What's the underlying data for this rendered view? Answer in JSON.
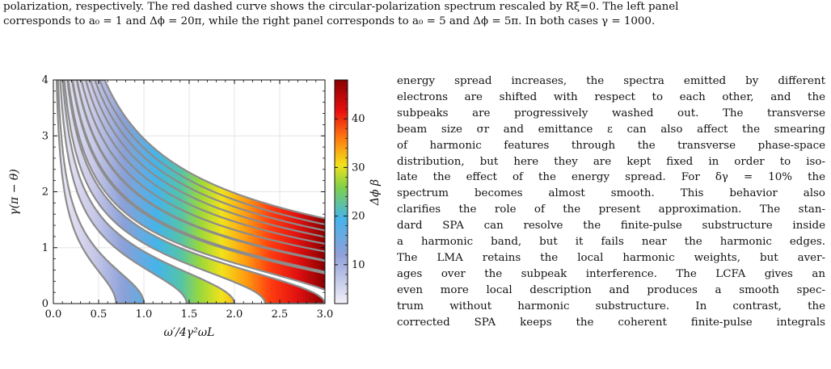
{
  "caption": {
    "line1": "polarization, respectively. The red dashed curve shows the circular-polarization spectrum rescaled by Rξ=0. The left panel",
    "line2": "corresponds to a₀ = 1 and Δϕ = 20π, while the right panel corresponds to a₀ = 5 and Δϕ = 5π. In both cases γ = 1000."
  },
  "body_text": [
    "energy spread increases, the spectra emitted by different",
    "electrons are shifted with respect to each other, and the",
    "subpeaks are progressively washed out. The transverse",
    "beam size σr and emittance ε can also affect the smearing",
    "of harmonic features through the transverse phase-space",
    "distribution, but here they are kept fixed in order to iso-",
    "late the effect of the energy spread. For δγ = 10% the",
    "spectrum becomes almost smooth. This behavior also",
    "clarifies the role of the present approximation. The stan-",
    "dard SPA can resolve the finite-pulse substructure inside",
    "a harmonic band, but it fails near the harmonic edges.",
    "The LMA retains the local harmonic weights, but aver-",
    "ages over the subpeak interference. The LCFA gives an",
    "even more local description and produces a smooth spec-",
    "trum without harmonic substructure. In contrast, the",
    "corrected SPA keeps the coherent finite-pulse integrals"
  ],
  "chart_data": {
    "type": "heatmap",
    "xlabel": "ω′/4γ²ωL",
    "ylabel": "γ(π − θ)",
    "colorbar_label": "Δϕ β",
    "xlim": [
      0,
      3
    ],
    "ylim": [
      0,
      4
    ],
    "x_ticks": [
      "0.0",
      "0.5",
      "1.0",
      "1.5",
      "2.0",
      "2.5",
      "3.0"
    ],
    "y_ticks": [
      "0",
      "1",
      "2",
      "3",
      "4"
    ],
    "colorbar_ticks": [
      "10",
      "20",
      "30",
      "40"
    ],
    "colorbar_range": [
      2,
      48
    ],
    "grid": true,
    "bands": [
      {
        "n": 1,
        "center": 1.0,
        "half_width": 0.14
      },
      {
        "n": 2,
        "center": 2.0,
        "half_width": 0.12
      },
      {
        "n": 3,
        "center": 3.0,
        "half_width": 0.1
      },
      {
        "n": 4,
        "center": 4.0,
        "half_width": 0.09
      },
      {
        "n": 5,
        "center": 5.0,
        "half_width": 0.08
      },
      {
        "n": 6,
        "center": 6.0,
        "half_width": 0.07
      },
      {
        "n": 7,
        "center": 7.0,
        "half_width": 0.065
      },
      {
        "n": 8,
        "center": 8.0,
        "half_width": 0.06
      },
      {
        "n": 9,
        "center": 9.0,
        "half_width": 0.055
      },
      {
        "n": 10,
        "center": 10.0,
        "half_width": 0.05
      },
      {
        "n": 11,
        "center": 11.0,
        "half_width": 0.045
      }
    ],
    "colors": {
      "low": "#e8e6f4",
      "blue": "#4aa8e6",
      "green": "#7ed04a",
      "yellow": "#f2e21a",
      "orange": "#ff7a10",
      "red": "#e81010",
      "dark": "#8a0000",
      "edge": "#8c8c8c"
    }
  }
}
